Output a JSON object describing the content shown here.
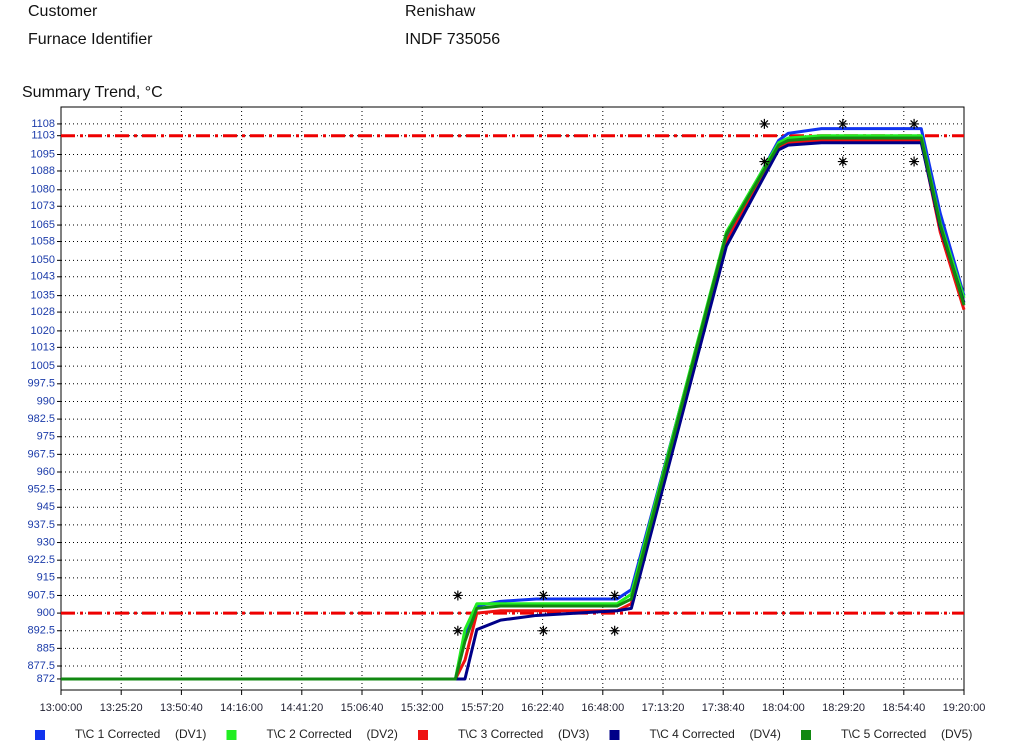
{
  "header": {
    "customer_label": "Customer",
    "customer_value": "Renishaw",
    "furnace_label": "Furnace Identifier",
    "furnace_value": "INDF 735056"
  },
  "chart_data": {
    "type": "line",
    "title": "Summary Trend, °C",
    "x": [
      "13:00:00",
      "15:46:00",
      "15:50:00",
      "15:55:00",
      "16:05:00",
      "16:20:00",
      "16:54:00",
      "17:00:00",
      "17:40:00",
      "18:02:00",
      "18:06:00",
      "18:20:00",
      "19:02:00",
      "19:10:00",
      "19:20:00"
    ],
    "series": [
      {
        "name": "T\\C 1 Corrected",
        "tag": "(DV1)",
        "color": "#1133ee",
        "values": [
          872,
          872,
          890,
          903,
          905,
          906,
          906,
          910,
          1060,
          1101,
          1104,
          1106,
          1106,
          1070,
          1035
        ]
      },
      {
        "name": "T\\C 2 Corrected",
        "tag": "(DV2)",
        "color": "#22ee22",
        "values": [
          872,
          872,
          893,
          904,
          904,
          904,
          904,
          908,
          1062,
          1100,
          1102,
          1103,
          1103,
          1066,
          1034
        ]
      },
      {
        "name": "T\\C 3 Corrected",
        "tag": "(DV3)",
        "color": "#ee1111",
        "values": [
          872,
          872,
          880,
          900,
          901,
          901,
          901,
          904,
          1058,
          1098,
          1100,
          1101,
          1101,
          1062,
          1029
        ]
      },
      {
        "name": "T\\C 4 Corrected",
        "tag": "(DV4)",
        "color": "#000088",
        "values": [
          872,
          872,
          872,
          893,
          897,
          899,
          901,
          902,
          1056,
          1097,
          1099,
          1100,
          1100,
          1064,
          1032
        ]
      },
      {
        "name": "T\\C 5 Corrected",
        "tag": "(DV5)",
        "color": "#118811",
        "values": [
          872,
          872,
          888,
          902,
          903,
          903,
          903,
          906,
          1061,
          1099,
          1101,
          1102,
          1102,
          1065,
          1031
        ]
      }
    ],
    "markers": {
      "x": [
        "15:47:00",
        "15:47:00",
        "16:23:00",
        "16:23:00",
        "16:53:00",
        "16:53:00",
        "17:56:00",
        "17:56:00",
        "18:29:00",
        "18:29:00",
        "18:59:00",
        "18:59:00"
      ],
      "y": [
        907.5,
        892.5,
        907.5,
        892.5,
        907.5,
        892.5,
        1108,
        1092,
        1108,
        1092,
        1108,
        1092
      ],
      "color": "#000000"
    },
    "limits": [
      {
        "value": 900,
        "color": "#ee0000"
      },
      {
        "value": 1103,
        "color": "#ee0000"
      }
    ],
    "xlim": [
      "13:00:00",
      "19:20:00"
    ],
    "xticks": [
      "13:00:00",
      "13:25:20",
      "13:50:40",
      "14:16:00",
      "14:41:20",
      "15:06:40",
      "15:32:00",
      "15:57:20",
      "16:22:40",
      "16:48:00",
      "17:13:20",
      "17:38:40",
      "18:04:00",
      "18:29:20",
      "18:54:40",
      "19:20:00"
    ],
    "ylim": [
      867.3,
      1115.2
    ],
    "yticks": [
      872,
      877.5,
      885,
      892.5,
      900,
      907.5,
      915,
      922.5,
      930,
      937.5,
      945,
      952.5,
      960,
      967.5,
      975,
      982.5,
      990,
      997.5,
      1005,
      1013,
      1020,
      1028,
      1035,
      1043,
      1050,
      1058,
      1065,
      1073,
      1080,
      1088,
      1095,
      1103,
      1108
    ],
    "grid": true
  }
}
